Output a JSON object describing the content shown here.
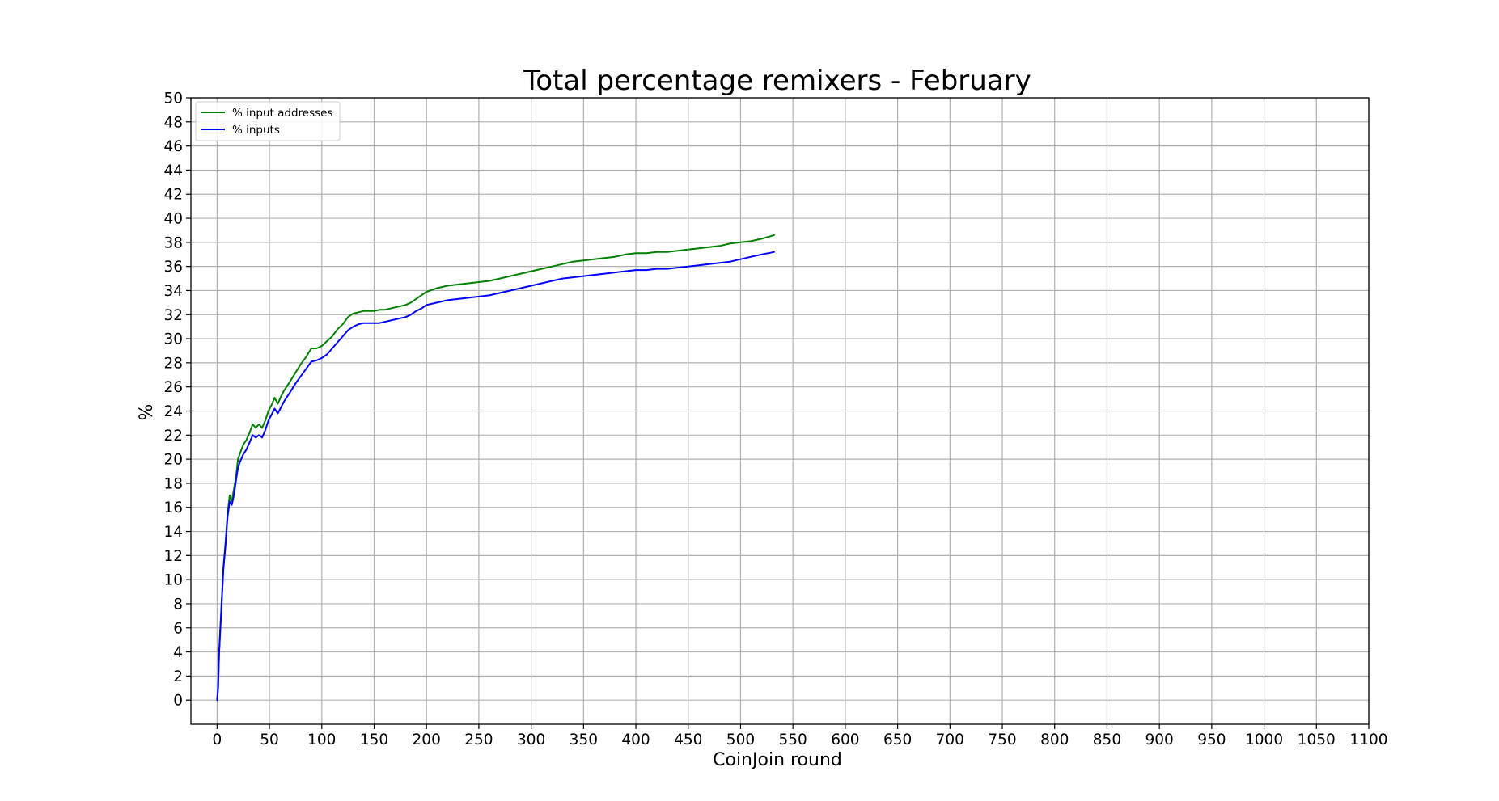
{
  "chart_data": {
    "type": "line",
    "title": "Total percentage remixers - February",
    "xlabel": "CoinJoin round",
    "ylabel": "%",
    "xlim": [
      -25,
      1100
    ],
    "ylim": [
      -2,
      50
    ],
    "xticks": [
      0,
      50,
      100,
      150,
      200,
      250,
      300,
      350,
      400,
      450,
      500,
      550,
      600,
      650,
      700,
      750,
      800,
      850,
      900,
      950,
      1000,
      1050,
      1100
    ],
    "yticks": [
      0,
      2,
      4,
      6,
      8,
      10,
      12,
      14,
      16,
      18,
      20,
      22,
      24,
      26,
      28,
      30,
      32,
      34,
      36,
      38,
      40,
      42,
      44,
      46,
      48,
      50
    ],
    "grid": true,
    "legend_position": "upper-left",
    "series": [
      {
        "name": "% input addresses",
        "color": "#008000",
        "x": [
          0,
          1,
          2,
          4,
          6,
          8,
          10,
          12,
          14,
          16,
          18,
          20,
          22,
          25,
          28,
          31,
          34,
          37,
          40,
          43,
          46,
          49,
          52,
          55,
          58,
          61,
          64,
          67,
          70,
          75,
          80,
          85,
          90,
          95,
          100,
          105,
          110,
          115,
          120,
          125,
          130,
          135,
          140,
          145,
          150,
          155,
          160,
          165,
          170,
          175,
          180,
          185,
          190,
          195,
          200,
          210,
          220,
          230,
          240,
          250,
          260,
          270,
          280,
          290,
          300,
          310,
          320,
          330,
          340,
          350,
          360,
          370,
          380,
          390,
          400,
          410,
          420,
          430,
          440,
          450,
          460,
          470,
          480,
          490,
          500,
          510,
          520,
          532
        ],
        "y": [
          0,
          1,
          4,
          7.5,
          11,
          13,
          15.5,
          17,
          16.5,
          17.5,
          18.5,
          20,
          20.5,
          21.2,
          21.6,
          22.2,
          22.9,
          22.6,
          22.9,
          22.6,
          23.2,
          24,
          24.5,
          25.1,
          24.6,
          25.2,
          25.7,
          26.1,
          26.5,
          27.2,
          27.9,
          28.5,
          29.2,
          29.2,
          29.4,
          29.8,
          30.2,
          30.8,
          31.2,
          31.8,
          32.1,
          32.2,
          32.3,
          32.3,
          32.3,
          32.4,
          32.4,
          32.5,
          32.6,
          32.7,
          32.8,
          33.0,
          33.3,
          33.6,
          33.9,
          34.2,
          34.4,
          34.5,
          34.6,
          34.7,
          34.8,
          35.0,
          35.2,
          35.4,
          35.6,
          35.8,
          36.0,
          36.2,
          36.4,
          36.5,
          36.6,
          36.7,
          36.8,
          37.0,
          37.1,
          37.1,
          37.2,
          37.2,
          37.3,
          37.4,
          37.5,
          37.6,
          37.7,
          37.9,
          38.0,
          38.1,
          38.3,
          38.6
        ]
      },
      {
        "name": "% inputs",
        "color": "#0000ff",
        "x": [
          0,
          1,
          2,
          4,
          6,
          8,
          10,
          12,
          14,
          16,
          18,
          20,
          22,
          25,
          28,
          31,
          34,
          37,
          40,
          43,
          46,
          49,
          52,
          55,
          58,
          61,
          64,
          67,
          70,
          75,
          80,
          85,
          90,
          95,
          100,
          105,
          110,
          115,
          120,
          125,
          130,
          135,
          140,
          145,
          150,
          155,
          160,
          165,
          170,
          175,
          180,
          185,
          190,
          195,
          200,
          210,
          220,
          230,
          240,
          250,
          260,
          270,
          280,
          290,
          300,
          310,
          320,
          330,
          340,
          350,
          360,
          370,
          380,
          390,
          400,
          410,
          420,
          430,
          440,
          450,
          460,
          470,
          480,
          490,
          500,
          510,
          520,
          532
        ],
        "y": [
          0,
          1,
          4,
          7.3,
          10.8,
          12.8,
          15.2,
          16.5,
          16.2,
          17,
          18.2,
          19.3,
          19.8,
          20.4,
          20.8,
          21.4,
          22.0,
          21.8,
          22.0,
          21.8,
          22.4,
          23.2,
          23.7,
          24.2,
          23.8,
          24.3,
          24.8,
          25.2,
          25.6,
          26.3,
          26.9,
          27.5,
          28.1,
          28.2,
          28.4,
          28.7,
          29.2,
          29.7,
          30.2,
          30.7,
          31.0,
          31.2,
          31.3,
          31.3,
          31.3,
          31.3,
          31.4,
          31.5,
          31.6,
          31.7,
          31.8,
          32.0,
          32.3,
          32.5,
          32.8,
          33.0,
          33.2,
          33.3,
          33.4,
          33.5,
          33.6,
          33.8,
          34.0,
          34.2,
          34.4,
          34.6,
          34.8,
          35.0,
          35.1,
          35.2,
          35.3,
          35.4,
          35.5,
          35.6,
          35.7,
          35.7,
          35.8,
          35.8,
          35.9,
          36.0,
          36.1,
          36.2,
          36.3,
          36.4,
          36.6,
          36.8,
          37.0,
          37.2
        ]
      }
    ]
  }
}
